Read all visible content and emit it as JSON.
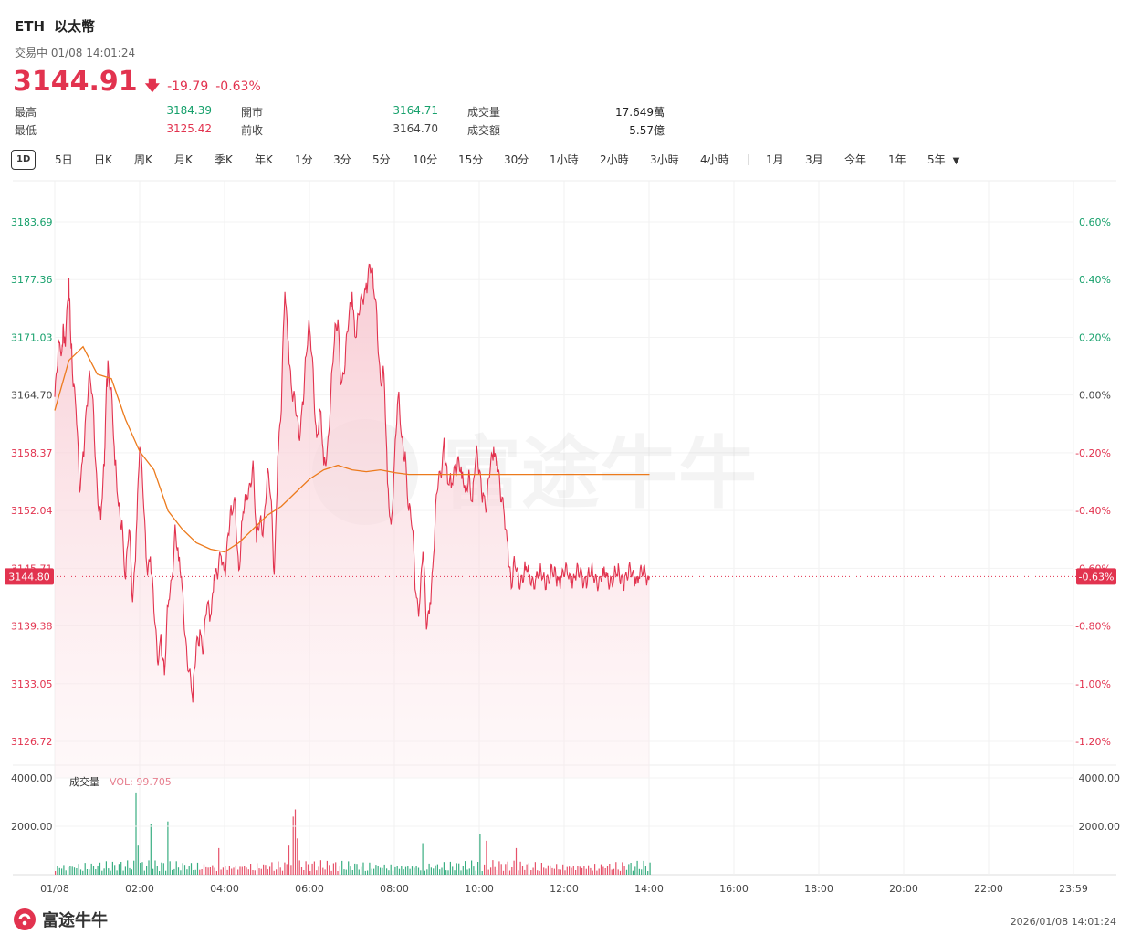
{
  "header": {
    "symbol": "ETH",
    "name": "以太幣",
    "status": "交易中 01/08 14:01:24",
    "price": "3144.91",
    "change": "-19.79",
    "change_pct": "-0.63%"
  },
  "stats": {
    "high_label": "最高",
    "high": "3184.39",
    "low_label": "最低",
    "low": "3125.42",
    "open_label": "開市",
    "open": "3164.71",
    "prev_label": "前收",
    "prev": "3164.70",
    "volume_label": "成交量",
    "volume": "17.649萬",
    "turnover_label": "成交額",
    "turnover": "5.57億"
  },
  "tabs": [
    "1D",
    "5日",
    "日K",
    "周K",
    "月K",
    "季K",
    "年K",
    "1分",
    "3分",
    "5分",
    "10分",
    "15分",
    "30分",
    "1小時",
    "2小時",
    "3小時",
    "4小時",
    "1月",
    "3月",
    "今年",
    "1年",
    "5年"
  ],
  "colors": {
    "up": "#16a06b",
    "down": "#e2334f",
    "ma": "#ec7a1c",
    "area_top": "#f7c6cf"
  },
  "chart_data": {
    "type": "line",
    "prev_close": 3164.7,
    "current": 3144.8,
    "current_pct": "-0.63%",
    "x_ticks": [
      "01/08",
      "02:00",
      "04:00",
      "06:00",
      "08:00",
      "10:00",
      "12:00",
      "14:00",
      "16:00",
      "18:00",
      "20:00",
      "22:00",
      "23:59"
    ],
    "y_left_ticks": [
      "3183.69",
      "3177.36",
      "3171.03",
      "3164.70",
      "3158.37",
      "3152.04",
      "3145.71",
      "3139.38",
      "3133.05",
      "3126.72"
    ],
    "y_right_ticks": [
      "0.60%",
      "0.40%",
      "0.20%",
      "0.00%",
      "-0.20%",
      "-0.40%",
      "-0.60%",
      "-0.80%",
      "-1.00%",
      "-1.20%"
    ],
    "ylim": [
      3126.72,
      3183.69
    ],
    "price_series": {
      "name": "",
      "x": [
        0,
        5,
        10,
        12,
        15,
        20,
        22,
        25,
        30,
        35,
        40,
        45,
        50,
        55,
        60,
        65,
        70,
        72,
        75,
        80,
        85,
        90,
        95,
        100,
        105,
        110,
        115,
        120,
        125,
        130,
        135,
        140,
        145,
        150,
        155,
        160,
        165,
        170,
        175,
        180,
        185,
        190,
        195,
        200,
        205,
        210,
        215,
        220,
        225,
        230,
        235,
        240,
        245,
        250,
        255,
        260,
        265,
        270,
        275,
        280,
        285,
        290,
        295,
        300,
        305,
        310,
        315,
        320,
        325,
        330,
        335,
        340,
        345,
        350,
        355,
        360,
        365,
        370,
        375,
        380,
        385,
        390,
        395,
        400,
        405,
        410,
        415,
        420,
        425,
        430,
        435,
        440,
        445,
        450,
        455,
        460,
        465,
        470,
        475,
        480,
        485,
        490,
        495,
        500,
        505,
        510,
        515,
        520,
        525,
        530,
        535,
        540,
        545,
        550,
        555,
        560,
        565,
        570,
        575,
        580,
        585,
        590,
        595,
        600,
        605,
        610,
        615,
        620,
        625,
        630,
        635,
        640,
        645,
        650,
        655,
        660,
        665,
        670,
        675,
        680,
        685,
        690,
        695,
        700,
        705,
        710,
        715,
        720,
        725,
        730,
        735,
        740,
        745,
        750,
        755,
        760,
        765,
        770,
        775,
        780,
        785,
        790,
        795,
        800,
        805,
        810,
        815,
        820,
        825,
        830,
        835,
        840
      ],
      "values": [
        3164.5,
        3170.8,
        3169.5,
        3172.5,
        3170.0,
        3177.5,
        3172.0,
        3167.0,
        3163.0,
        3154.0,
        3158.5,
        3163.5,
        3166.5,
        3162.5,
        3154.5,
        3151.0,
        3157.0,
        3163.0,
        3168.5,
        3165.5,
        3157.0,
        3152.5,
        3151.0,
        3144.5,
        3150.0,
        3142.0,
        3149.5,
        3159.0,
        3153.5,
        3146.0,
        3147.0,
        3141.0,
        3135.5,
        3138.5,
        3134.0,
        3141.5,
        3144.5,
        3150.5,
        3146.5,
        3143.5,
        3138.0,
        3134.5,
        3131.0,
        3137.5,
        3139.0,
        3136.5,
        3141.5,
        3140.5,
        3145.0,
        3144.5,
        3147.0,
        3145.5,
        3149.5,
        3151.5,
        3153.0,
        3145.5,
        3151.0,
        3153.0,
        3155.0,
        3157.5,
        3148.5,
        3151.0,
        3150.5,
        3156.0,
        3153.5,
        3145.0,
        3158.0,
        3163.0,
        3176.0,
        3170.5,
        3165.0,
        3163.0,
        3160.0,
        3164.0,
        3169.0,
        3172.0,
        3167.5,
        3160.0,
        3163.0,
        3157.0,
        3159.0,
        3165.0,
        3170.5,
        3173.0,
        3166.0,
        3168.0,
        3172.5,
        3176.0,
        3171.0,
        3173.5,
        3175.0,
        3177.0,
        3179.0,
        3176.5,
        3173.5,
        3166.5,
        3167.0,
        3155.0,
        3150.5,
        3158.0,
        3164.5,
        3160.0,
        3158.5,
        3152.0,
        3150.0,
        3143.0,
        3141.5,
        3147.5,
        3139.0,
        3142.0,
        3147.0,
        3154.0,
        3156.0,
        3160.0,
        3155.0,
        3154.5,
        3157.0,
        3158.0,
        3155.5,
        3154.0,
        3156.5,
        3153.0,
        3158.0,
        3156.5,
        3154.0,
        3152.0,
        3156.5,
        3159.0,
        3157.5,
        3153.0,
        3151.5,
        3148.5,
        3143.5,
        3146.0,
        3144.8,
        3144.9,
        3145.5,
        3144.8,
        3144.8,
        3144.8,
        3144.8,
        3144.8,
        3144.8,
        3144.8,
        3144.8,
        3144.8,
        3144.8,
        3144.8,
        3144.8,
        3144.8,
        3144.8,
        3144.8,
        3144.8,
        3144.8,
        3144.8,
        3144.8,
        3144.8,
        3144.8,
        3144.8,
        3144.8,
        3144.8,
        3144.8,
        3144.8,
        3144.8,
        3144.8,
        3144.8,
        3144.8,
        3144.8,
        3144.8,
        3144.8,
        3144.8,
        3144.8
      ]
    },
    "ma_series": {
      "name": "",
      "x": [
        0,
        20,
        40,
        60,
        80,
        100,
        120,
        140,
        160,
        180,
        200,
        220,
        240,
        260,
        280,
        300,
        320,
        340,
        360,
        380,
        400,
        420,
        440,
        460,
        480,
        500,
        520,
        540,
        560,
        580,
        600,
        620,
        640,
        660,
        680,
        700,
        720,
        740,
        760,
        780,
        800,
        820,
        840
      ],
      "values": [
        3163.0,
        3168.5,
        3170.0,
        3167.0,
        3166.5,
        3162.0,
        3158.5,
        3156.5,
        3152.0,
        3150.0,
        3148.5,
        3147.8,
        3147.5,
        3148.5,
        3150.0,
        3151.5,
        3152.5,
        3154.0,
        3155.5,
        3156.5,
        3157.0,
        3156.5,
        3156.3,
        3156.5,
        3156.2,
        3156.0,
        3156.0,
        3156.0,
        3156.0,
        3156.0,
        3156.0,
        3156.0,
        3156.0,
        3156.0,
        3156.0,
        3156.0,
        3156.0,
        3156.0,
        3156.0,
        3156.0,
        3156.0,
        3156.0,
        3156.0
      ]
    },
    "volume": {
      "label": "成交量",
      "vol_label": "VOL: 99.705",
      "y_ticks": [
        "4000.00",
        "2000.00"
      ],
      "ylim": [
        0,
        4000
      ]
    }
  },
  "footer": {
    "brand": "富途牛牛",
    "timestamp": "2026/01/08 14:01:24"
  }
}
